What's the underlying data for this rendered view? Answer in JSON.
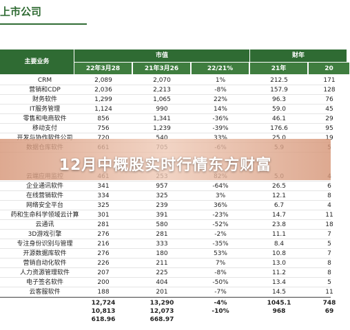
{
  "header": {
    "title": "上市公司"
  },
  "table": {
    "group_headers": [
      "主要业务",
      "市值",
      "财年"
    ],
    "columns": [
      "22年3月28",
      "21年3月26",
      "22/21%",
      "21年",
      "20"
    ],
    "rows": [
      [
        "CRM",
        "2,089",
        "2,070",
        "1%",
        "212.5",
        "171"
      ],
      [
        "营销和CDP",
        "2,036",
        "2,213",
        "-8%",
        "157.9",
        "128"
      ],
      [
        "财务软件",
        "1,299",
        "1,065",
        "22%",
        "96.3",
        "76"
      ],
      [
        "IT服务管理",
        "1,124",
        "990",
        "14%",
        "59.0",
        "45"
      ],
      [
        "零售和电商软件",
        "856",
        "1,341",
        "-36%",
        "46.1",
        "29"
      ],
      [
        "移动支付",
        "756",
        "1,239",
        "-39%",
        "176.6",
        "95"
      ],
      [
        "开发与协作软件公司",
        "720",
        "540",
        "33%",
        "25.0",
        "19"
      ],
      [
        "数据仓库软件",
        "661",
        "705",
        "-6%",
        "5.9",
        "5"
      ],
      [
        "云端应用监控",
        "461",
        "253",
        "82%",
        "5.0",
        "4"
      ],
      [
        "企业通讯软件",
        "341",
        "957",
        "-64%",
        "26.5",
        "6"
      ],
      [
        "在线营销软件",
        "334",
        "325",
        "3%",
        "12.1",
        "8"
      ],
      [
        "网络安全平台",
        "325",
        "239",
        "36%",
        "6.7",
        "4"
      ],
      [
        "药和生命科学领域云计算",
        "301",
        "391",
        "-23%",
        "14.7",
        "11"
      ],
      [
        "云通讯",
        "281",
        "580",
        "-52%",
        "23.8",
        "18"
      ],
      [
        "3D游戏引擎",
        "276",
        "281",
        "-2%",
        "11.1",
        "7"
      ],
      [
        "专注身份识别与管理",
        "216",
        "333",
        "-35%",
        "8.4",
        "5"
      ],
      [
        "开源数据库软件",
        "276",
        "180",
        "53%",
        "10.8",
        "7"
      ],
      [
        "营销自动化软件",
        "226",
        "211",
        "7%",
        "13.0",
        "8"
      ],
      [
        "人力资源管理软件",
        "207",
        "225",
        "-8%",
        "11.2",
        "8"
      ],
      [
        "电子签名软件",
        "200",
        "404",
        "-50%",
        "13.4",
        "5"
      ],
      [
        "云客服软件",
        "188",
        "201",
        "-7%",
        "14.5",
        "11"
      ]
    ],
    "totals": [
      [
        "12,724",
        "13,290",
        "-4%",
        "1045.1",
        "748"
      ],
      [
        "10,813",
        "12,073",
        "-10%",
        "968",
        "69"
      ],
      [
        "618.96",
        "668.97"
      ]
    ]
  },
  "banner": {
    "text": "12月中概股实时行情东方财富"
  }
}
